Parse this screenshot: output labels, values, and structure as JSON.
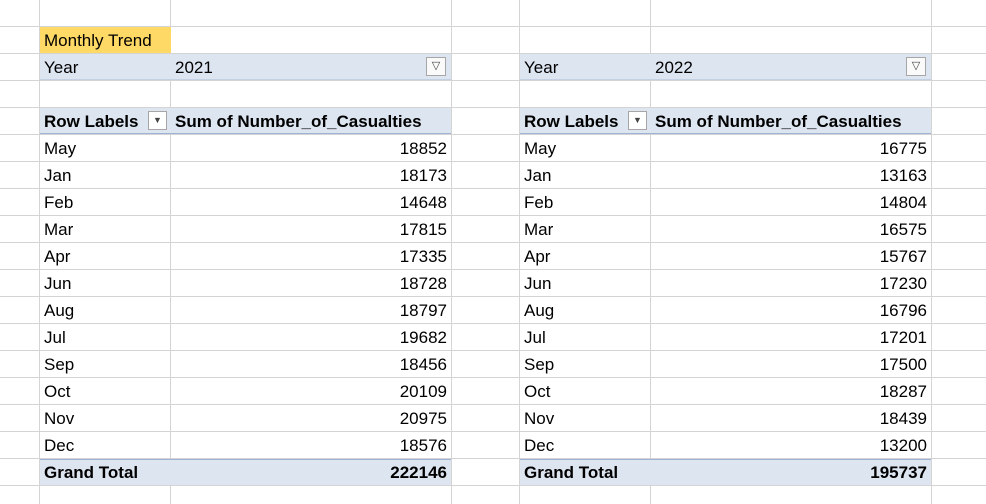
{
  "sheet": {
    "title": "Monthly Trend"
  },
  "pivots": [
    {
      "filter_label": "Year",
      "filter_value": "2021",
      "row_header": "Row Labels",
      "value_header": "Sum of Number_of_Casualties",
      "rows": [
        {
          "label": "May",
          "value": "18852"
        },
        {
          "label": "Jan",
          "value": "18173"
        },
        {
          "label": "Feb",
          "value": "14648"
        },
        {
          "label": "Mar",
          "value": "17815"
        },
        {
          "label": "Apr",
          "value": "17335"
        },
        {
          "label": "Jun",
          "value": "18728"
        },
        {
          "label": "Aug",
          "value": "18797"
        },
        {
          "label": "Jul",
          "value": "19682"
        },
        {
          "label": "Sep",
          "value": "18456"
        },
        {
          "label": "Oct",
          "value": "20109"
        },
        {
          "label": "Nov",
          "value": "20975"
        },
        {
          "label": "Dec",
          "value": "18576"
        }
      ],
      "total_label": "Grand Total",
      "total_value": "222146"
    },
    {
      "filter_label": "Year",
      "filter_value": "2022",
      "row_header": "Row Labels",
      "value_header": "Sum of Number_of_Casualties",
      "rows": [
        {
          "label": "May",
          "value": "16775"
        },
        {
          "label": "Jan",
          "value": "13163"
        },
        {
          "label": "Feb",
          "value": "14804"
        },
        {
          "label": "Mar",
          "value": "16575"
        },
        {
          "label": "Apr",
          "value": "15767"
        },
        {
          "label": "Jun",
          "value": "17230"
        },
        {
          "label": "Aug",
          "value": "16796"
        },
        {
          "label": "Jul",
          "value": "17201"
        },
        {
          "label": "Sep",
          "value": "17500"
        },
        {
          "label": "Oct",
          "value": "18287"
        },
        {
          "label": "Nov",
          "value": "18439"
        },
        {
          "label": "Dec",
          "value": "13200"
        }
      ],
      "total_label": "Grand Total",
      "total_value": "195737"
    }
  ],
  "icons": {
    "filter": "filter-funnel-icon",
    "dropdown": "dropdown-arrow-icon"
  },
  "colors": {
    "title_fill": "#ffd966",
    "pivot_fill": "#dde5f1",
    "gridline": "#d4d4d4"
  }
}
